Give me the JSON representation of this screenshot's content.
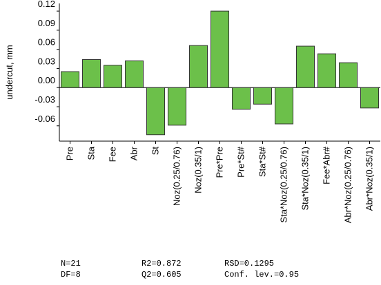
{
  "chart_data": {
    "type": "bar",
    "y_label": "undercut, mm",
    "categories": [
      "Pre",
      "Sta",
      "Fee",
      "Abr",
      "St",
      "Noz(0.25/0.76)",
      "Noz(0.35/1)",
      "Pre*Pre",
      "Pre*St#",
      "Sta*St#",
      "Sta*Noz(0.25/0.76)",
      "Sta*Noz(0.35/1)",
      "Fee*Abr#",
      "Abr*Noz(0.25/0.76)",
      "Abr*Noz(0.35/1)"
    ],
    "values": [
      0.025,
      0.044,
      0.035,
      0.042,
      -0.074,
      -0.059,
      0.066,
      0.12,
      -0.034,
      -0.026,
      -0.057,
      0.065,
      0.053,
      0.039,
      -0.032
    ],
    "color": "#6cc04a",
    "ylim": [
      -0.084,
      0.132
    ],
    "yticks": [
      {
        "value": -0.06,
        "label": "-0.06"
      },
      {
        "value": -0.03,
        "label": "-0.03"
      },
      {
        "value": 0,
        "label": "0.00"
      },
      {
        "value": 0.03,
        "label": "0.03"
      },
      {
        "value": 0.06,
        "label": "0.06"
      },
      {
        "value": 0.09,
        "label": "0.09"
      },
      {
        "value": 0.12,
        "label": "0.12"
      }
    ],
    "stats": [
      [
        "N=21",
        "R2=0.872",
        "RSD=0.1295"
      ],
      [
        "DF=8",
        "Q2=0.605",
        "Conf. lev.=0.95"
      ]
    ]
  }
}
